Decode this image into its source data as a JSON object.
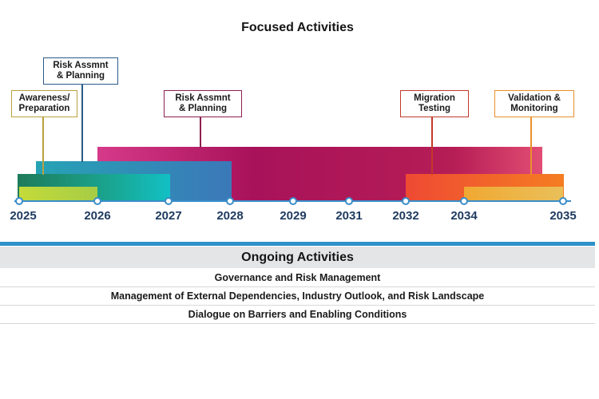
{
  "title": "Focused Activities",
  "callouts": [
    {
      "id": "awareness",
      "text": "Awareness/\nPreparation",
      "color": "#b9a040"
    },
    {
      "id": "risk1",
      "text": "Risk Assmnt\n& Planning",
      "color": "#2b5a8a"
    },
    {
      "id": "risk2",
      "text": "Risk Assmnt\n& Planning",
      "color": "#8c1f4f"
    },
    {
      "id": "migration",
      "text": "Migration\nTesting",
      "color": "#c0392b"
    },
    {
      "id": "validation",
      "text": "Validation &\nMonitoring",
      "color": "#e8902c"
    }
  ],
  "years": [
    "2025",
    "2026",
    "2027",
    "2028",
    "2029",
    "2031",
    "2032",
    "2034",
    "2035"
  ],
  "ongoing": {
    "header": "Ongoing Activities",
    "rows": [
      "Governance and Risk Management",
      "Management of External Dependencies, Industry Outlook, and Risk Landscape",
      "Dialogue on Barriers and Enabling Conditions"
    ]
  },
  "colors": {
    "axis": "#3a8ec9",
    "divider": "#2e91c9",
    "header_bg": "#e4e5e6"
  }
}
